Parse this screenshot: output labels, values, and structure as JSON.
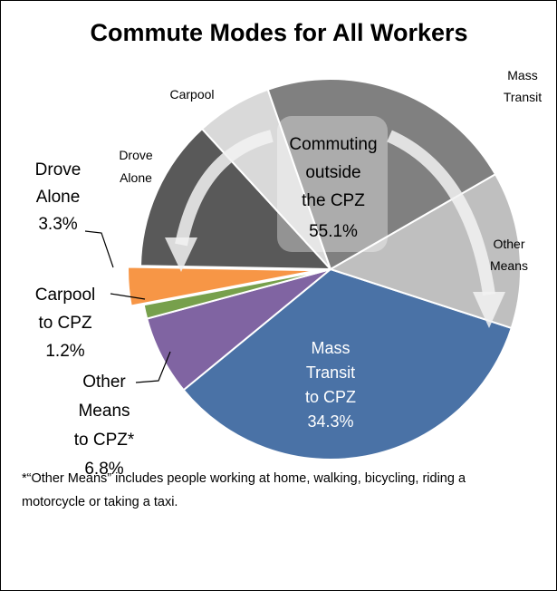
{
  "chart_data": {
    "type": "pie",
    "title": "Commute Modes for All Workers",
    "categories": [
      "Mass Transit to CPZ",
      "Other Means to CPZ*",
      "Carpool to CPZ",
      "Drove Alone",
      "Drove Alone",
      "Carpool",
      "Mass Transit",
      "Other Means"
    ],
    "values": [
      34.3,
      6.8,
      1.2,
      3.3,
      13,
      6.5,
      22.2,
      13.4
    ],
    "value_labels": [
      "34.3%",
      "6.8%",
      "1.2%",
      "3.3%",
      null,
      null,
      null,
      null
    ],
    "colors": [
      "#4a72a6",
      "#8064a2",
      "#77a04c",
      "#f79646",
      "#595959",
      "#d9d9d9",
      "#808080",
      "#bfbfbf"
    ],
    "annotation": {
      "text": "Commuting outside the CPZ",
      "value_label": "55.1%"
    },
    "footnote": "*“Other Means” includes people working at home, walking, bicycling, riding a motorcycle or taking a taxi."
  }
}
